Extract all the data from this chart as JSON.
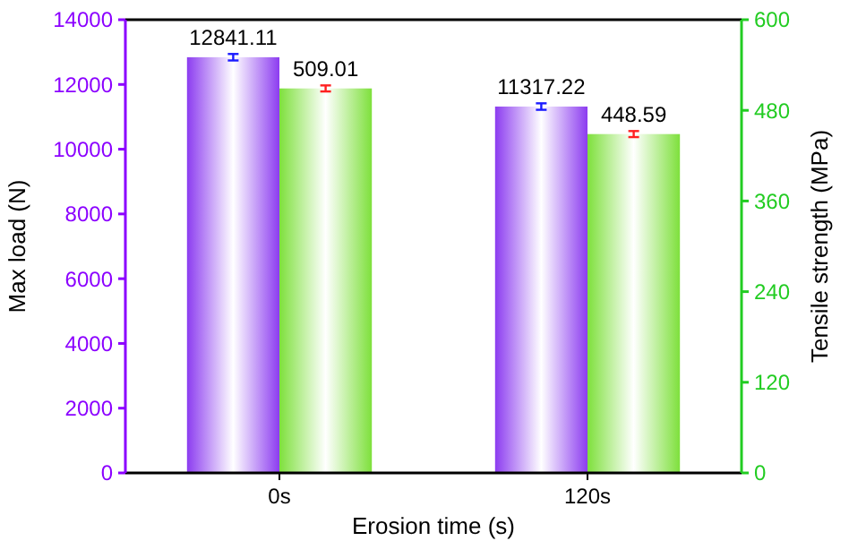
{
  "chart_data": {
    "type": "bar",
    "xlabel": "Erosion time (s)",
    "ylabel": "Max load (N)",
    "y2label": "Tensile strength (MPa)",
    "categories": [
      "0s",
      "120s"
    ],
    "series": [
      {
        "color": "#8c3cf0",
        "values": [
          12841.11,
          11317.22
        ],
        "errors": [
          100,
          100
        ],
        "axis": "y"
      },
      {
        "color": "#7ee03c",
        "values": [
          509.01,
          448.59
        ],
        "errors": [
          4,
          4
        ],
        "axis": "y2"
      }
    ],
    "ylim": [
      0,
      14000
    ],
    "yticks": [
      0,
      2000,
      4000,
      6000,
      8000,
      10000,
      12000,
      14000
    ],
    "y2lim": [
      0,
      600
    ],
    "y2ticks": [
      0,
      120,
      240,
      360,
      480,
      600
    ],
    "data_labels": true,
    "grid": false
  }
}
